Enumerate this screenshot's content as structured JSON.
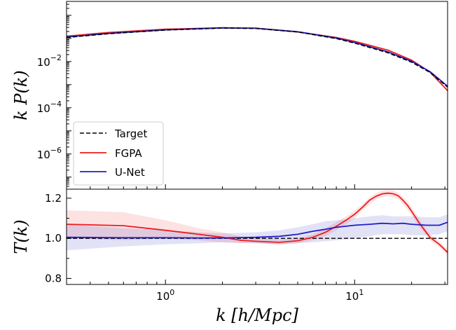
{
  "chart_data": [
    {
      "type": "line",
      "panel": "top",
      "ylabel": "k P(k)",
      "xscale": "log",
      "yscale": "log",
      "xlim": [
        0.3,
        31
      ],
      "ylim": [
        3e-08,
        4
      ],
      "y_ticks": [
        {
          "base": "10",
          "exp": "−2",
          "value": 0.01
        },
        {
          "base": "10",
          "exp": "−4",
          "value": 0.0001
        },
        {
          "base": "10",
          "exp": "−6",
          "value": 1e-06
        }
      ],
      "legend": {
        "position": "lower-left"
      },
      "series": [
        {
          "name": "Target",
          "color": "#000000",
          "style": "dashed",
          "x": [
            0.3,
            0.5,
            1,
            2,
            3,
            5,
            8,
            10,
            15,
            20,
            25,
            31
          ],
          "y": [
            0.11,
            0.16,
            0.23,
            0.28,
            0.27,
            0.19,
            0.099,
            0.063,
            0.024,
            0.0094,
            0.0034,
            0.00078
          ]
        },
        {
          "name": "FGPA",
          "color": "#ee1c1c",
          "style": "solid",
          "x": [
            0.3,
            0.5,
            1,
            2,
            3,
            5,
            8,
            10,
            15,
            20,
            25,
            31
          ],
          "y": [
            0.125,
            0.18,
            0.25,
            0.29,
            0.28,
            0.19,
            0.11,
            0.075,
            0.031,
            0.0115,
            0.0035,
            0.00055
          ]
        },
        {
          "name": "U-Net",
          "color": "#1f1fc8",
          "style": "solid",
          "x": [
            0.3,
            0.5,
            1,
            2,
            3,
            5,
            8,
            10,
            15,
            20,
            25,
            31
          ],
          "y": [
            0.115,
            0.165,
            0.235,
            0.285,
            0.275,
            0.195,
            0.104,
            0.067,
            0.026,
            0.0102,
            0.0037,
            0.00085
          ]
        }
      ]
    },
    {
      "type": "line",
      "panel": "bottom",
      "xlabel": "k [h/Mpc]",
      "ylabel": "T(k)",
      "xscale": "log",
      "xlim": [
        0.3,
        31
      ],
      "ylim": [
        0.77,
        1.245
      ],
      "x_ticks": [
        {
          "base": "10",
          "exp": "0",
          "value": 1
        },
        {
          "base": "10",
          "exp": "1",
          "value": 10
        }
      ],
      "y_ticks": [
        {
          "label": "0.8",
          "value": 0.8
        },
        {
          "label": "1.0",
          "value": 1.0
        },
        {
          "label": "1.2",
          "value": 1.2
        }
      ],
      "reference_line": {
        "y": 1.0,
        "style": "dashed",
        "color": "#000000"
      },
      "series": [
        {
          "name": "FGPA",
          "color": "#ee1c1c",
          "x": [
            0.3,
            0.6,
            1,
            1.5,
            2,
            2.5,
            3,
            4,
            5,
            6,
            7,
            8,
            9,
            10,
            11,
            12,
            13,
            14,
            15,
            16,
            17,
            18,
            19,
            20,
            22,
            25,
            28,
            31
          ],
          "y": [
            1.07,
            1.063,
            1.04,
            1.02,
            1.005,
            0.99,
            0.985,
            0.98,
            0.988,
            1.005,
            1.03,
            1.06,
            1.09,
            1.12,
            1.155,
            1.19,
            1.21,
            1.222,
            1.225,
            1.222,
            1.212,
            1.19,
            1.165,
            1.135,
            1.075,
            1.005,
            0.97,
            0.93
          ],
          "band_lower": [
            1.0,
            0.99,
            1.0,
            0.99,
            0.98,
            0.975,
            0.975,
            0.97,
            0.975,
            0.99,
            1.01,
            1.04,
            1.07,
            1.1,
            1.14,
            1.17,
            1.195,
            1.205,
            1.21,
            1.205,
            1.195,
            1.17,
            1.145,
            1.115,
            1.055,
            0.99,
            0.955,
            0.915
          ],
          "band_upper": [
            1.14,
            1.13,
            1.09,
            1.05,
            1.03,
            1.01,
            1.0,
            0.995,
            1.0,
            1.02,
            1.05,
            1.08,
            1.11,
            1.14,
            1.17,
            1.205,
            1.225,
            1.238,
            1.24,
            1.238,
            1.228,
            1.208,
            1.185,
            1.155,
            1.095,
            1.02,
            0.985,
            0.945
          ]
        },
        {
          "name": "U-Net",
          "color": "#1f1fc8",
          "x": [
            0.3,
            0.6,
            1,
            1.5,
            2,
            3,
            4,
            5,
            6,
            7,
            8,
            10,
            12,
            14,
            16,
            18,
            20,
            24,
            28,
            31
          ],
          "y": [
            1.005,
            1.003,
            1.003,
            1.002,
            1.002,
            1.005,
            1.01,
            1.02,
            1.035,
            1.045,
            1.055,
            1.065,
            1.07,
            1.075,
            1.072,
            1.075,
            1.07,
            1.065,
            1.065,
            1.08
          ],
          "band_lower": [
            0.94,
            0.96,
            0.97,
            0.975,
            0.98,
            0.975,
            0.97,
            0.975,
            0.98,
            0.985,
            0.99,
            1.0,
            1.01,
            1.02,
            1.02,
            1.02,
            1.015,
            1.015,
            1.02,
            1.035
          ],
          "band_upper": [
            1.07,
            1.05,
            1.04,
            1.03,
            1.025,
            1.03,
            1.04,
            1.055,
            1.07,
            1.085,
            1.09,
            1.1,
            1.11,
            1.115,
            1.11,
            1.11,
            1.11,
            1.105,
            1.105,
            1.12
          ]
        }
      ]
    }
  ]
}
